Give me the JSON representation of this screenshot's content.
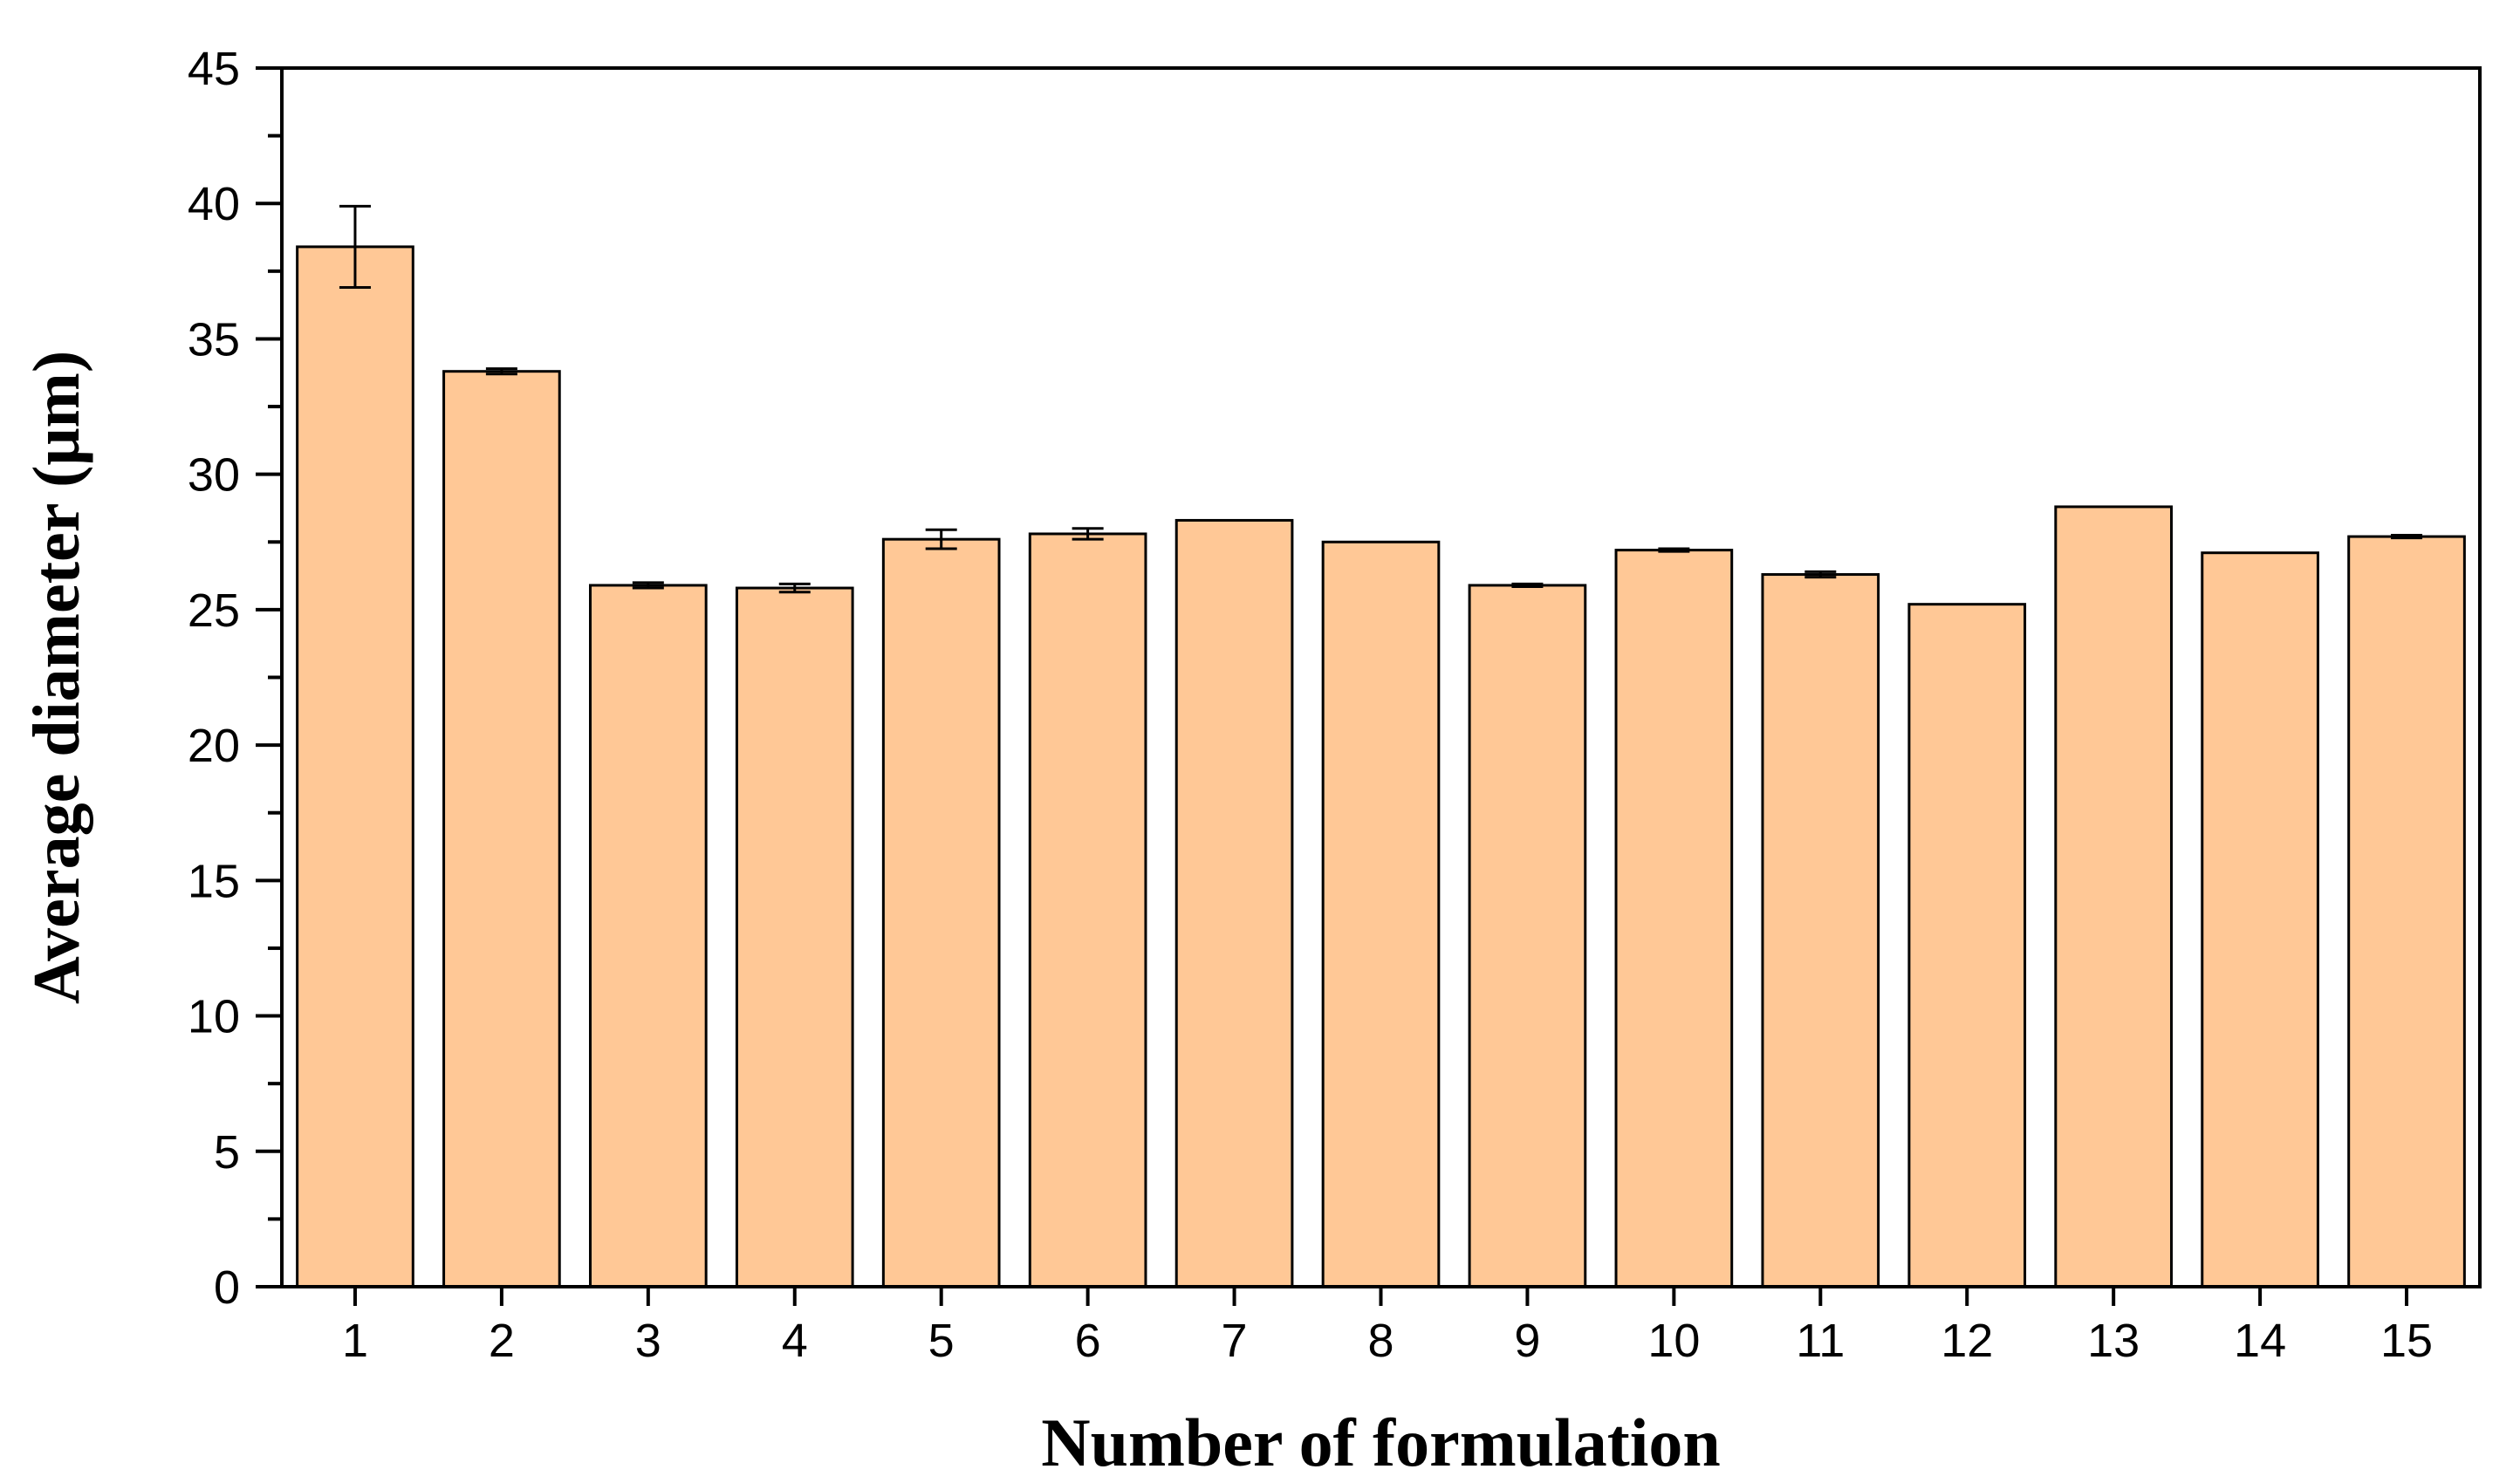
{
  "chart_data": {
    "type": "bar",
    "title": "",
    "xlabel": "Number of formulation",
    "ylabel": "Average diameter (μm)",
    "categories": [
      "1",
      "2",
      "3",
      "4",
      "5",
      "6",
      "7",
      "8",
      "9",
      "10",
      "11",
      "12",
      "13",
      "14",
      "15"
    ],
    "values": [
      38.4,
      33.8,
      25.9,
      25.8,
      27.6,
      27.8,
      28.3,
      27.5,
      25.9,
      27.2,
      26.3,
      25.2,
      28.8,
      27.1,
      27.7
    ],
    "errors": [
      1.5,
      0.1,
      0.1,
      0.15,
      0.35,
      0.2,
      0,
      0,
      0.05,
      0.05,
      0.1,
      0,
      0,
      0,
      0.05
    ],
    "ylim": [
      0,
      45
    ],
    "yticks": [
      0,
      5,
      10,
      15,
      20,
      25,
      30,
      35,
      40,
      45
    ],
    "grid": false,
    "legend": "none",
    "bar_color": "#FFC896",
    "edge_color": "#000000"
  }
}
